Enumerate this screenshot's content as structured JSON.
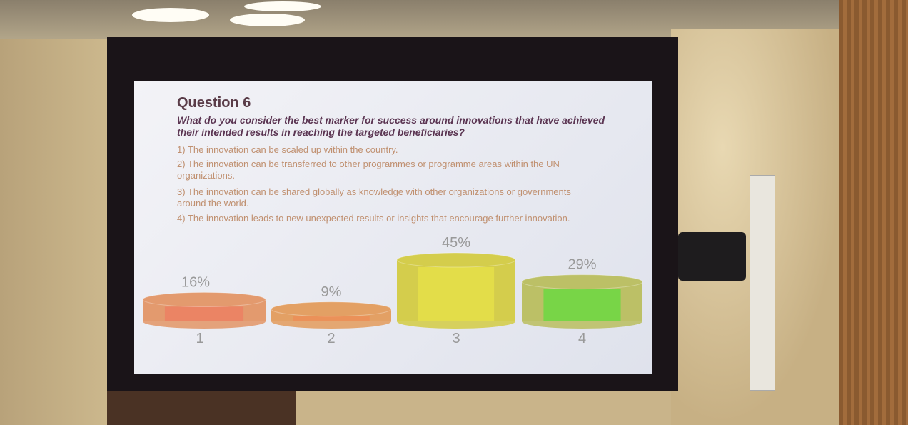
{
  "chart_data": {
    "type": "bar",
    "title": "Question 6",
    "subtitle": "What do you consider the best marker for success around innovations that have achieved their intended results in reaching the targeted beneficiaries?",
    "options": [
      "1) The innovation can be scaled up within the country.",
      "2) The innovation can be transferred to other programmes or programme areas within the UN organizations.",
      "3) The innovation can be shared globally as knowledge with other organizations or governments around the world.",
      "4) The innovation leads to new unexpected results or insights that encourage further innovation."
    ],
    "categories": [
      "1",
      "2",
      "3",
      "4"
    ],
    "values": [
      16,
      9,
      45,
      29
    ],
    "value_labels": [
      "16%",
      "9%",
      "45%",
      "29%"
    ],
    "colors": [
      "#e39a6e",
      "#e3a064",
      "#d4cd4c",
      "#bcc066"
    ],
    "accent_colors": [
      "#ee7c62",
      "#ee8c56",
      "#e8e248",
      "#62dc3e"
    ]
  }
}
